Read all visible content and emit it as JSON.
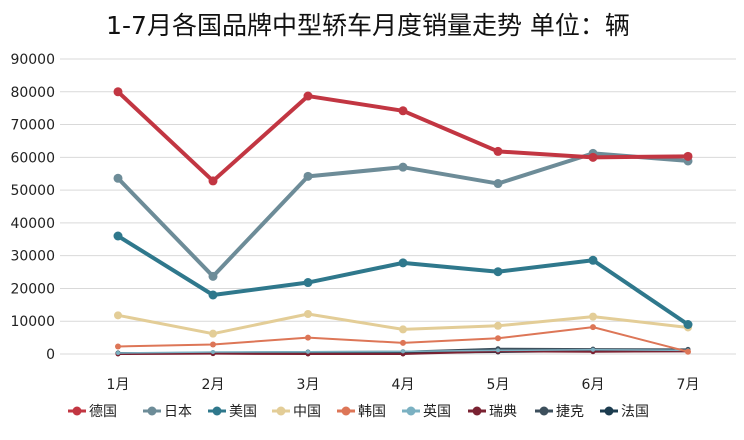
{
  "chart_data": {
    "type": "line",
    "title": "1-7月各国品牌中型轿车月度销量走势 单位：辆",
    "categories": [
      "1月",
      "2月",
      "3月",
      "4月",
      "5月",
      "6月",
      "7月"
    ],
    "ylim": [
      0,
      90000
    ],
    "yticks": [
      "0",
      "10000",
      "20000",
      "30000",
      "40000",
      "50000",
      "60000",
      "70000",
      "80000",
      "90000"
    ],
    "grid": "horizontal",
    "legend_position": "bottom",
    "series": [
      {
        "name": "德国",
        "color": "#c23642",
        "width": 4,
        "marker": 9,
        "values": [
          80000,
          52800,
          78700,
          74200,
          61800,
          60000,
          60300
        ]
      },
      {
        "name": "日本",
        "color": "#6d8c98",
        "width": 4,
        "marker": 9,
        "values": [
          53600,
          23700,
          54200,
          57000,
          52000,
          61200,
          58900
        ]
      },
      {
        "name": "美国",
        "color": "#2f788c",
        "width": 4,
        "marker": 9,
        "values": [
          36000,
          18000,
          21800,
          27800,
          25100,
          28600,
          9000
        ]
      },
      {
        "name": "中国",
        "color": "#e3cd97",
        "width": 3,
        "marker": 8,
        "values": [
          11800,
          6200,
          12200,
          7500,
          8600,
          11400,
          8100
        ]
      },
      {
        "name": "韩国",
        "color": "#dd7657",
        "width": 2,
        "marker": 6,
        "values": [
          2300,
          2900,
          5000,
          3400,
          4800,
          8200,
          700
        ]
      },
      {
        "name": "英国",
        "color": "#7bb1c2",
        "width": 1.5,
        "marker": 4,
        "values": [
          300,
          600,
          700,
          800,
          1100,
          1300,
          1100
        ]
      },
      {
        "name": "瑞典",
        "color": "#7a2232",
        "width": 2,
        "marker": 5,
        "values": [
          0,
          100,
          0,
          0,
          800,
          700,
          800
        ]
      },
      {
        "name": "捷克",
        "color": "#3d4f5c",
        "width": 2,
        "marker": 5,
        "values": [
          200,
          400,
          600,
          700,
          1600,
          1500,
          1400
        ]
      },
      {
        "name": "法国",
        "color": "#1c3c4f",
        "width": 2,
        "marker": 5,
        "values": [
          300,
          300,
          400,
          400,
          600,
          900,
          1200
        ]
      }
    ]
  }
}
